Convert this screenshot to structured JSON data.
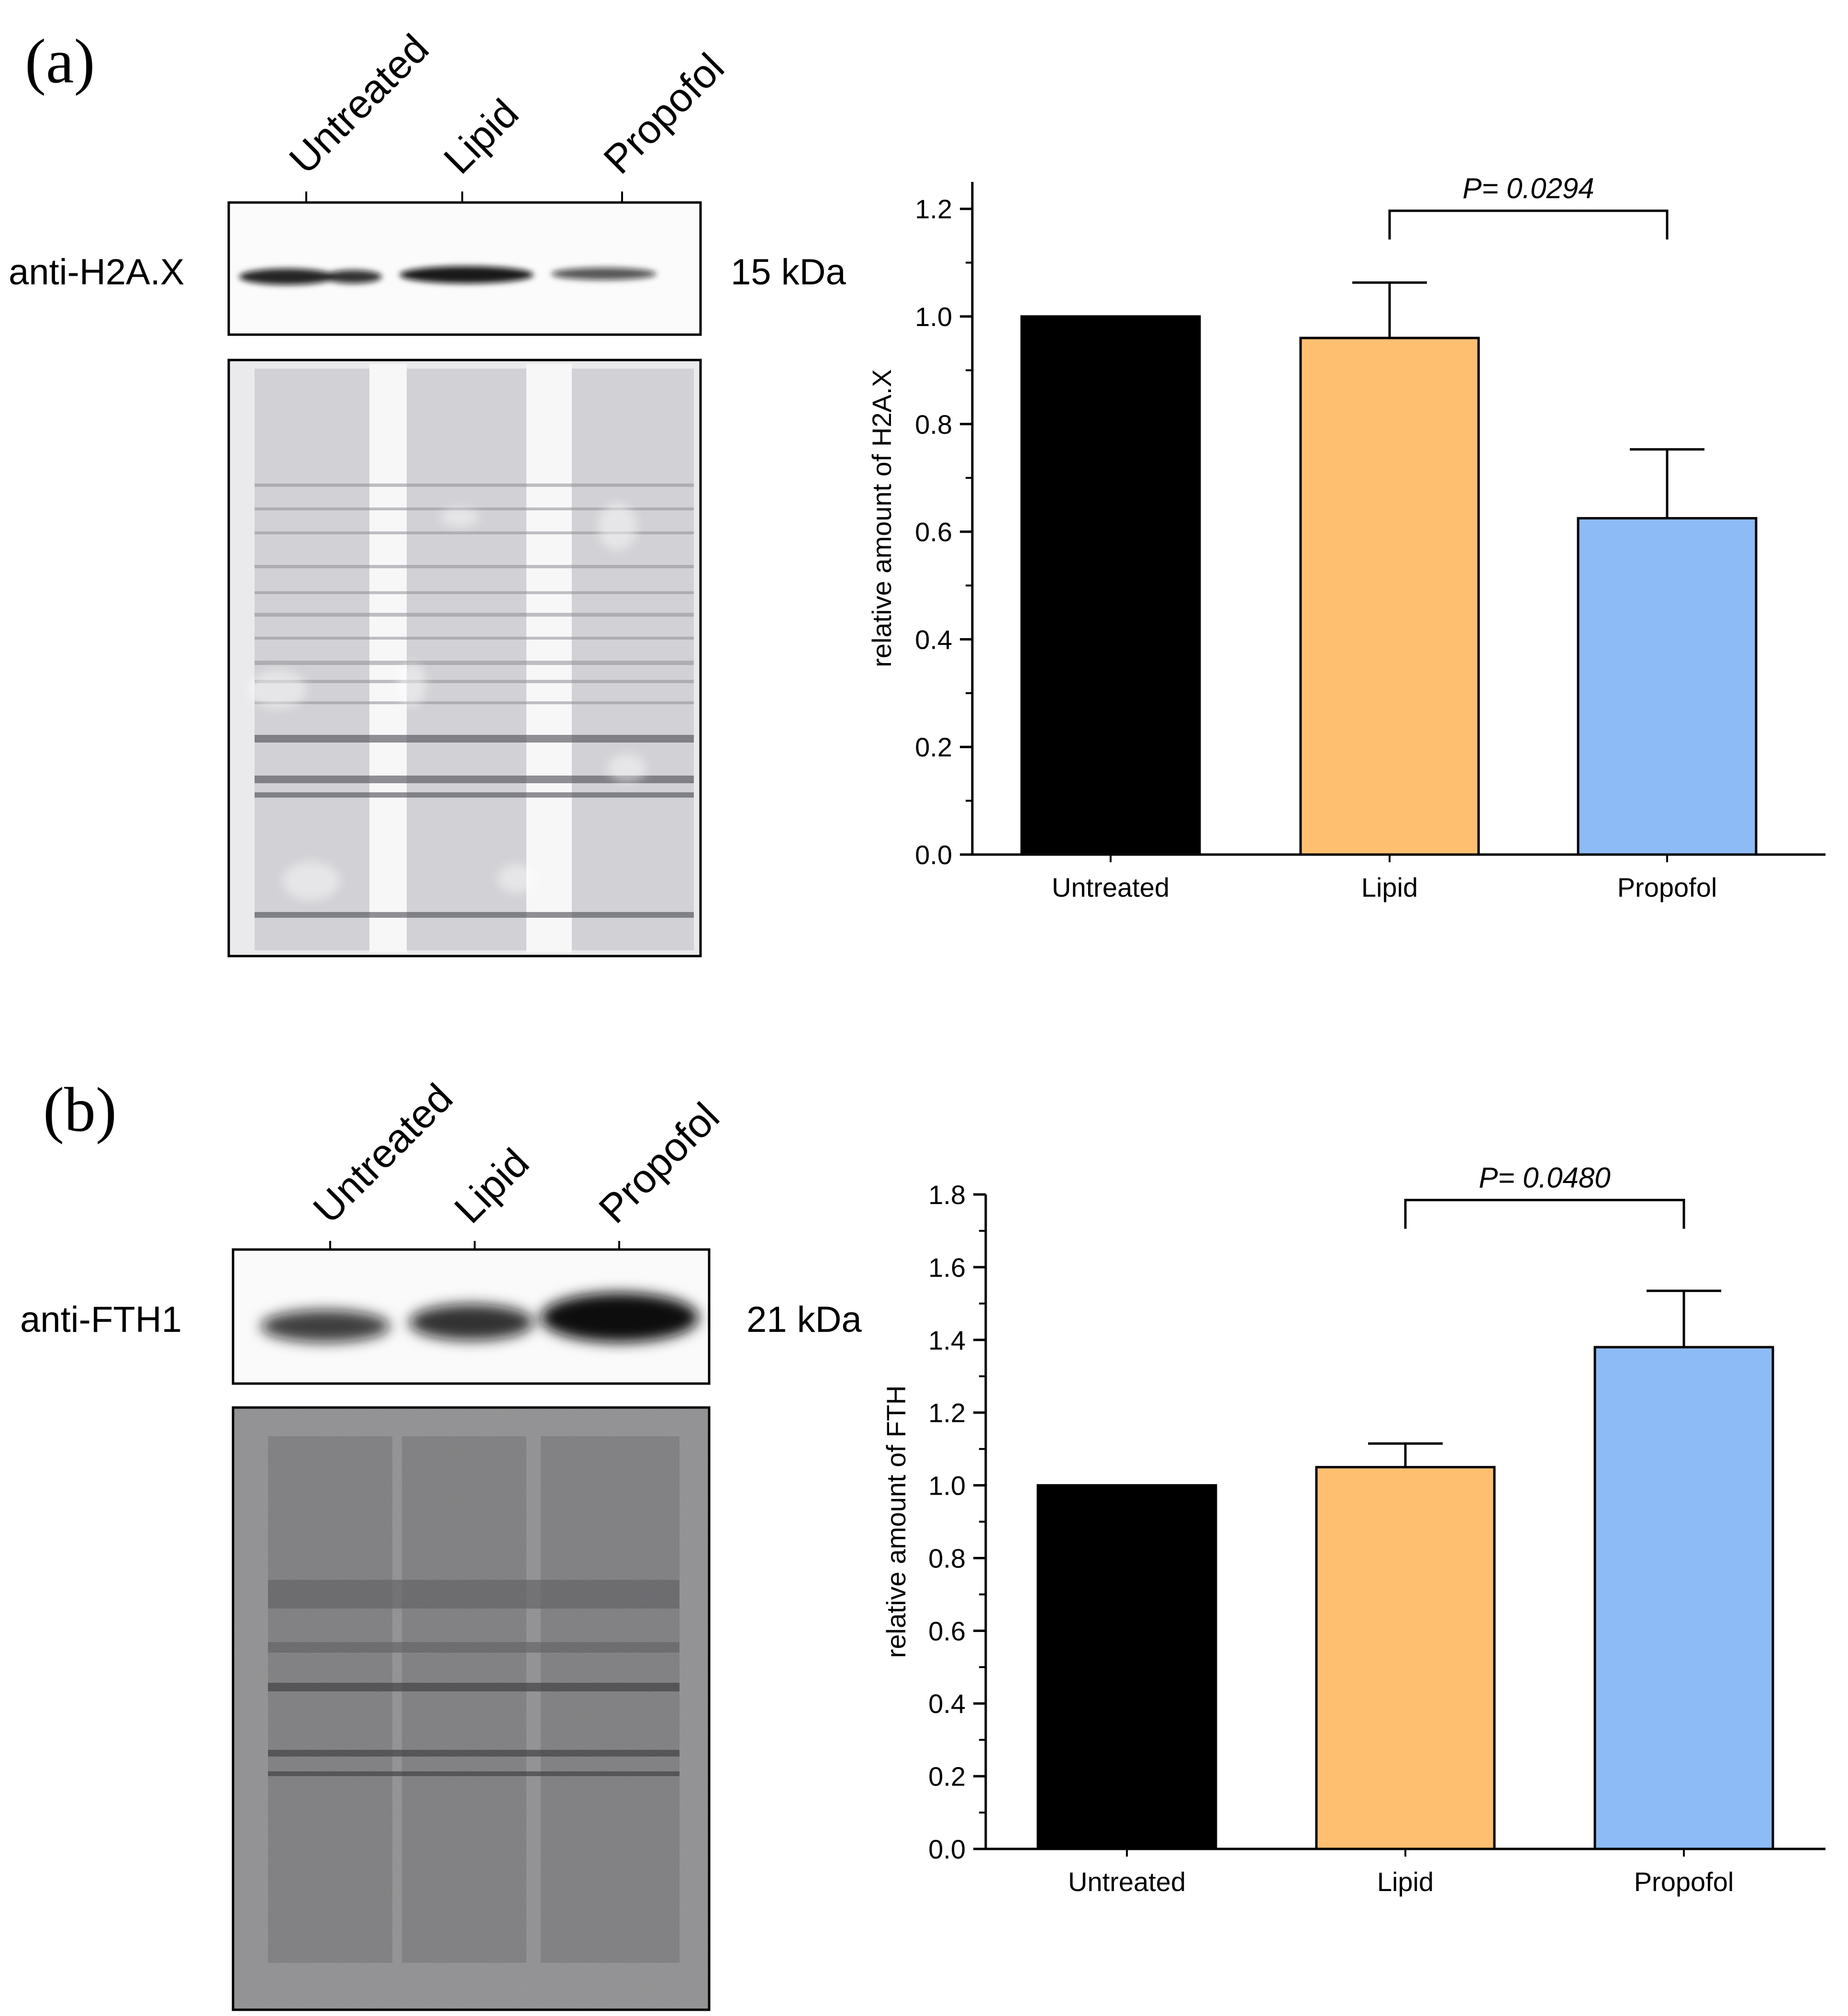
{
  "panels": [
    {
      "id": "a",
      "label": "(a)",
      "blot": {
        "antibody": "anti-H2A.X",
        "size": "15 kDa",
        "lanes": [
          "Untreated",
          "Lipid",
          "Propofol"
        ]
      }
    },
    {
      "id": "b",
      "label": "(b)",
      "blot": {
        "antibody": "anti-FTH1",
        "size": "21 kDa",
        "lanes": [
          "Untreated",
          "Lipid",
          "Propofol"
        ]
      }
    }
  ],
  "chart_data": [
    {
      "type": "bar",
      "categories": [
        "Untreated",
        "Lipid",
        "Propofol"
      ],
      "values": [
        1.0,
        0.96,
        0.625
      ],
      "errors": [
        0,
        0.103,
        0.128
      ],
      "colors": [
        "#000000",
        "#ffbf70",
        "#8dbbf6"
      ],
      "ylabel": "relative amount of H2A.X",
      "xlabel": "",
      "ylim": [
        0,
        1.25
      ],
      "yticks": [
        "0.0",
        "0.2",
        "0.4",
        "0.6",
        "0.8",
        "1.0",
        "1.2"
      ],
      "significance": {
        "from": "Lipid",
        "to": "Propofol",
        "label": "P= 0.0294",
        "level": 1.2
      }
    },
    {
      "type": "bar",
      "categories": [
        "Untreated",
        "Lipid",
        "Propofol"
      ],
      "values": [
        1.0,
        1.05,
        1.38
      ],
      "errors": [
        0,
        0.065,
        0.155
      ],
      "colors": [
        "#000000",
        "#ffbf70",
        "#8dbbf6"
      ],
      "ylabel": "relative amount of FTH",
      "xlabel": "",
      "ylim": [
        0,
        1.8
      ],
      "yticks": [
        "0.0",
        "0.2",
        "0.4",
        "0.6",
        "0.8",
        "1.0",
        "1.2",
        "1.4",
        "1.6",
        "1.8"
      ],
      "significance": {
        "from": "Lipid",
        "to": "Propofol",
        "label": "P= 0.0480",
        "level": 1.79
      }
    }
  ]
}
